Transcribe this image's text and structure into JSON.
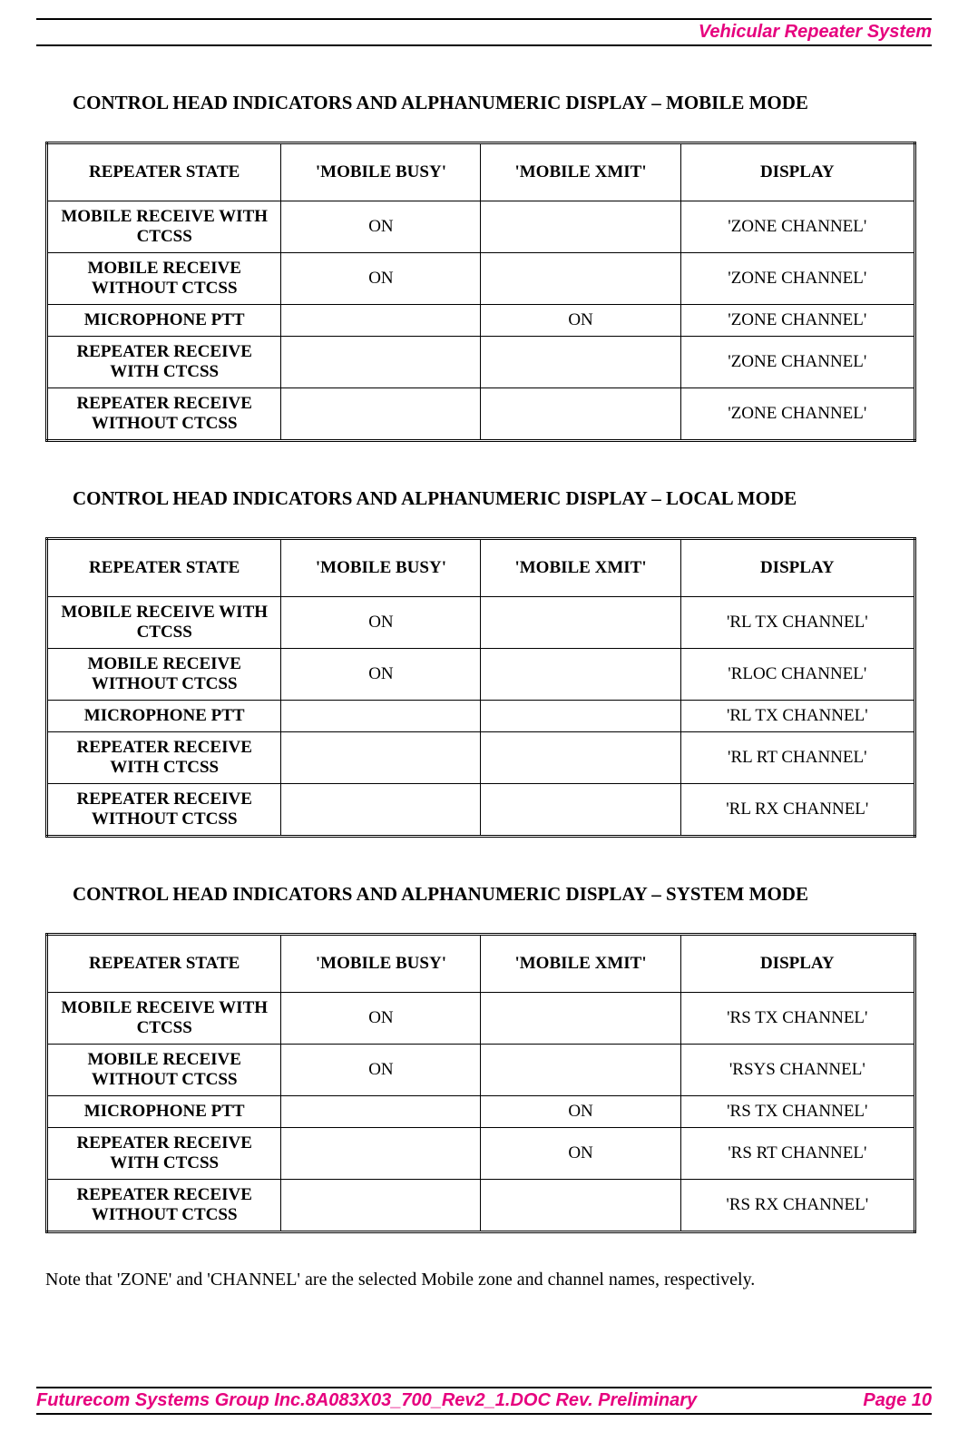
{
  "header_title": "Vehicular Repeater System",
  "section_mobile": {
    "title": "CONTROL HEAD INDICATORS AND ALPHANUMERIC DISPLAY – MOBILE MODE",
    "columns": [
      "REPEATER STATE",
      "'MOBILE BUSY'",
      "'MOBILE XMIT'",
      "DISPLAY"
    ],
    "rows": [
      [
        "MOBILE RECEIVE WITH CTCSS",
        "ON",
        "",
        "'ZONE CHANNEL'"
      ],
      [
        "MOBILE RECEIVE WITHOUT CTCSS",
        "ON",
        "",
        "'ZONE CHANNEL'"
      ],
      [
        "MICROPHONE PTT",
        "",
        "ON",
        "'ZONE CHANNEL'"
      ],
      [
        "REPEATER RECEIVE WITH CTCSS",
        "",
        "",
        "'ZONE CHANNEL'"
      ],
      [
        "REPEATER RECEIVE WITHOUT CTCSS",
        "",
        "",
        "'ZONE CHANNEL'"
      ]
    ]
  },
  "section_local": {
    "title": "CONTROL HEAD INDICATORS AND ALPHANUMERIC DISPLAY – LOCAL MODE",
    "columns": [
      "REPEATER STATE",
      "'MOBILE BUSY'",
      "'MOBILE XMIT'",
      "DISPLAY"
    ],
    "rows": [
      [
        "MOBILE RECEIVE WITH CTCSS",
        "ON",
        "",
        "'RL TX CHANNEL'"
      ],
      [
        "MOBILE RECEIVE WITHOUT CTCSS",
        "ON",
        "",
        "'RLOC CHANNEL'"
      ],
      [
        "MICROPHONE PTT",
        "",
        "",
        "'RL TX CHANNEL'"
      ],
      [
        "REPEATER RECEIVE WITH CTCSS",
        "",
        "",
        "'RL RT CHANNEL'"
      ],
      [
        "REPEATER RECEIVE WITHOUT CTCSS",
        "",
        "",
        "'RL RX CHANNEL'"
      ]
    ]
  },
  "section_system": {
    "title": "CONTROL HEAD INDICATORS AND ALPHANUMERIC DISPLAY – SYSTEM MODE",
    "columns": [
      "REPEATER STATE",
      "'MOBILE BUSY'",
      "'MOBILE XMIT'",
      "DISPLAY"
    ],
    "rows": [
      [
        "MOBILE RECEIVE WITH CTCSS",
        "ON",
        "",
        "'RS TX CHANNEL'"
      ],
      [
        "MOBILE RECEIVE WITHOUT CTCSS",
        "ON",
        "",
        "'RSYS CHANNEL'"
      ],
      [
        "MICROPHONE PTT",
        "",
        "ON",
        "'RS TX CHANNEL'"
      ],
      [
        "REPEATER RECEIVE WITH CTCSS",
        "",
        "ON",
        "'RS RT CHANNEL'"
      ],
      [
        "REPEATER RECEIVE WITHOUT CTCSS",
        "",
        "",
        "'RS RX CHANNEL'"
      ]
    ]
  },
  "note": "Note that 'ZONE' and 'CHANNEL' are the selected Mobile zone and channel names, respectively.",
  "footer_left": "Futurecom Systems Group Inc.8A083X03_700_Rev2_1.DOC Rev. Preliminary",
  "footer_right": "Page 10"
}
